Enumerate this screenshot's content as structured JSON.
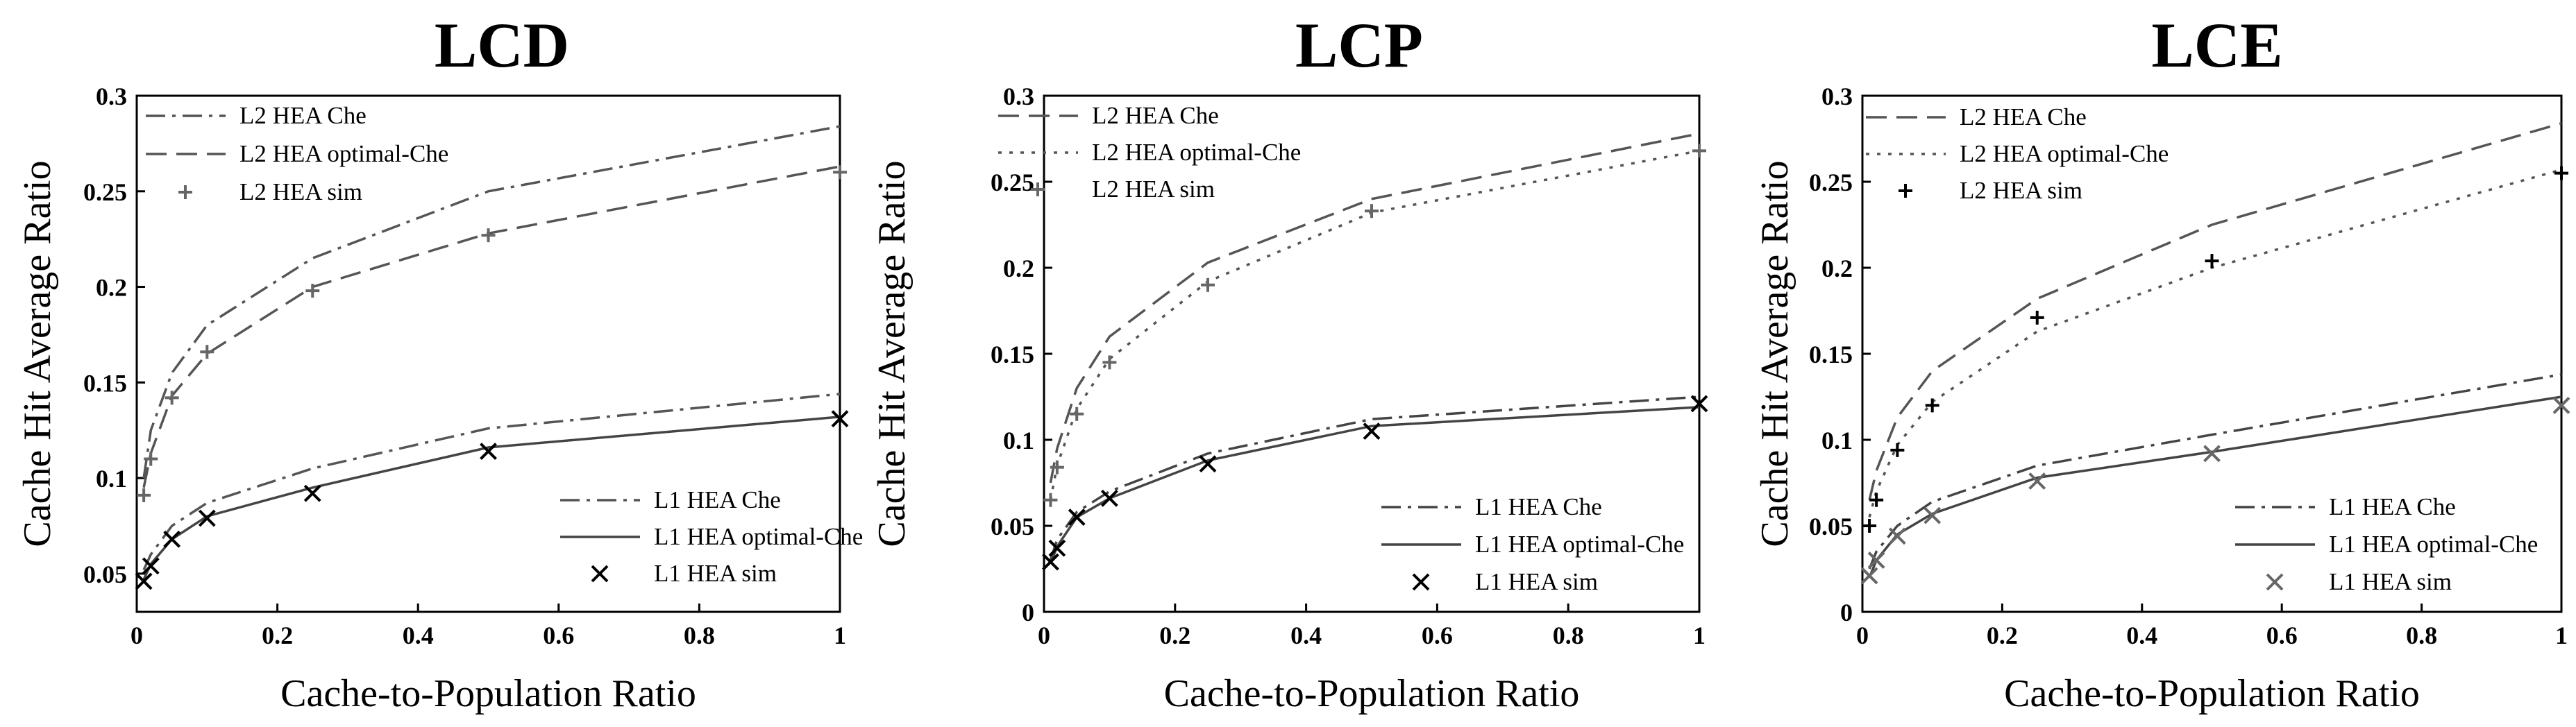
{
  "chart_data": [
    {
      "type": "line",
      "title": "LCD",
      "xlabel": "Cache-to-Population Ratio",
      "ylabel": "Cache Hit Average Ratio",
      "xlim": [
        0,
        1
      ],
      "ylim": [
        0.03,
        0.3
      ],
      "xticks": [
        0,
        0.2,
        0.4,
        0.6,
        0.8,
        1
      ],
      "xtick_labels": [
        "0",
        "0.2",
        "0.4",
        "0.6",
        "0.8",
        "1"
      ],
      "yticks": [
        0.05,
        0.1,
        0.15,
        0.2,
        0.25,
        0.3
      ],
      "ytick_labels": [
        "0.05",
        "0.1",
        "0.15",
        "0.2",
        "0.25",
        "0.3"
      ],
      "series": [
        {
          "name": "L2 HEA Che",
          "kind": "line",
          "dash": "dashdot",
          "color": "#555555",
          "group": "top",
          "x": [
            0.01,
            0.02,
            0.05,
            0.1,
            0.25,
            0.5,
            1
          ],
          "y": [
            0.1,
            0.125,
            0.155,
            0.18,
            0.215,
            0.25,
            0.284
          ]
        },
        {
          "name": "L2 HEA optimal-Che",
          "kind": "line",
          "dash": "dash",
          "color": "#555555",
          "group": "top",
          "x": [
            0.01,
            0.02,
            0.05,
            0.1,
            0.25,
            0.5,
            1
          ],
          "y": [
            0.095,
            0.113,
            0.143,
            0.165,
            0.2,
            0.228,
            0.263
          ]
        },
        {
          "name": "L2 HEA sim",
          "kind": "marker",
          "marker": "+",
          "color": "#666666",
          "group": "top",
          "x": [
            0.01,
            0.02,
            0.05,
            0.1,
            0.25,
            0.5,
            1
          ],
          "y": [
            0.091,
            0.11,
            0.142,
            0.166,
            0.198,
            0.227,
            0.26
          ]
        },
        {
          "name": "L1 HEA Che",
          "kind": "line",
          "dash": "dashdot",
          "color": "#555555",
          "group": "bottom",
          "x": [
            0.01,
            0.02,
            0.05,
            0.1,
            0.25,
            0.5,
            1
          ],
          "y": [
            0.052,
            0.06,
            0.075,
            0.087,
            0.105,
            0.126,
            0.144
          ]
        },
        {
          "name": "L1 HEA optimal-Che",
          "kind": "line",
          "dash": "solid",
          "color": "#444444",
          "group": "bottom",
          "x": [
            0.01,
            0.02,
            0.05,
            0.1,
            0.25,
            0.5,
            1
          ],
          "y": [
            0.047,
            0.055,
            0.068,
            0.08,
            0.095,
            0.116,
            0.132
          ]
        },
        {
          "name": "L1 HEA sim",
          "kind": "marker",
          "marker": "x",
          "color": "#000000",
          "group": "bottom",
          "x": [
            0.01,
            0.02,
            0.05,
            0.1,
            0.25,
            0.5,
            1
          ],
          "y": [
            0.046,
            0.054,
            0.068,
            0.079,
            0.092,
            0.114,
            0.131
          ]
        }
      ]
    },
    {
      "type": "line",
      "title": "LCP",
      "xlabel": "Cache-to-Population Ratio",
      "ylabel": "Cache Hit Average Ratio",
      "xlim": [
        0,
        1
      ],
      "ylim": [
        0,
        0.3
      ],
      "xticks": [
        0,
        0.2,
        0.4,
        0.6,
        0.8,
        1
      ],
      "xtick_labels": [
        "0",
        "0.2",
        "0.4",
        "0.6",
        "0.8",
        "1"
      ],
      "yticks": [
        0,
        0.05,
        0.1,
        0.15,
        0.2,
        0.25,
        0.3
      ],
      "ytick_labels": [
        "0",
        "0.05",
        "0.1",
        "0.15",
        "0.2",
        "0.25",
        "0.3"
      ],
      "series": [
        {
          "name": "L2 HEA Che",
          "kind": "line",
          "dash": "dash",
          "color": "#555555",
          "group": "top",
          "x": [
            0.01,
            0.02,
            0.05,
            0.1,
            0.25,
            0.5,
            1
          ],
          "y": [
            0.075,
            0.095,
            0.13,
            0.16,
            0.203,
            0.24,
            0.278
          ]
        },
        {
          "name": "L2 HEA optimal-Che",
          "kind": "line",
          "dash": "dot",
          "color": "#555555",
          "group": "top",
          "x": [
            0.01,
            0.02,
            0.05,
            0.1,
            0.25,
            0.5,
            1
          ],
          "y": [
            0.065,
            0.085,
            0.118,
            0.147,
            0.192,
            0.232,
            0.268
          ]
        },
        {
          "name": "L2 HEA sim",
          "kind": "marker",
          "marker": "+",
          "color": "#666666",
          "group": "top",
          "x": [
            0.01,
            0.02,
            0.05,
            0.1,
            0.25,
            0.5,
            1
          ],
          "y": [
            0.065,
            0.084,
            0.115,
            0.145,
            0.19,
            0.233,
            0.268
          ]
        },
        {
          "name": "L1 HEA Che",
          "kind": "line",
          "dash": "dashdot",
          "color": "#444444",
          "group": "bottom",
          "x": [
            0.01,
            0.02,
            0.05,
            0.1,
            0.25,
            0.5,
            1
          ],
          "y": [
            0.03,
            0.042,
            0.058,
            0.07,
            0.092,
            0.112,
            0.125
          ]
        },
        {
          "name": "L1 HEA optimal-Che",
          "kind": "line",
          "dash": "solid",
          "color": "#444444",
          "group": "bottom",
          "x": [
            0.01,
            0.02,
            0.05,
            0.1,
            0.25,
            0.5,
            1
          ],
          "y": [
            0.028,
            0.038,
            0.055,
            0.066,
            0.088,
            0.108,
            0.119
          ]
        },
        {
          "name": "L1 HEA sim",
          "kind": "marker",
          "marker": "x",
          "color": "#000000",
          "group": "bottom",
          "x": [
            0.01,
            0.02,
            0.05,
            0.1,
            0.25,
            0.5,
            1
          ],
          "y": [
            0.029,
            0.037,
            0.055,
            0.066,
            0.086,
            0.105,
            0.121
          ]
        }
      ]
    },
    {
      "type": "line",
      "title": "LCE",
      "xlabel": "Cache-to-Population Ratio",
      "ylabel": "Cache Hit Average Ratio",
      "xlim": [
        0,
        1
      ],
      "ylim": [
        0,
        0.3
      ],
      "xticks": [
        0,
        0.2,
        0.4,
        0.6,
        0.8,
        1
      ],
      "xtick_labels": [
        "0",
        "0.2",
        "0.4",
        "0.6",
        "0.8",
        "1"
      ],
      "yticks": [
        0,
        0.05,
        0.1,
        0.15,
        0.2,
        0.25,
        0.3
      ],
      "ytick_labels": [
        "0",
        "0.05",
        "0.1",
        "0.15",
        "0.2",
        "0.25",
        "0.3"
      ],
      "series": [
        {
          "name": "L2 HEA Che",
          "kind": "line",
          "dash": "dash",
          "color": "#555555",
          "group": "top",
          "x": [
            0.01,
            0.02,
            0.05,
            0.1,
            0.25,
            0.5,
            1
          ],
          "y": [
            0.065,
            0.082,
            0.113,
            0.14,
            0.182,
            0.225,
            0.284
          ]
        },
        {
          "name": "L2 HEA optimal-Che",
          "kind": "line",
          "dash": "dot",
          "color": "#555555",
          "group": "top",
          "x": [
            0.01,
            0.02,
            0.05,
            0.1,
            0.25,
            0.5,
            1
          ],
          "y": [
            0.055,
            0.07,
            0.097,
            0.122,
            0.163,
            0.2,
            0.257
          ]
        },
        {
          "name": "L2 HEA sim",
          "kind": "marker",
          "marker": "+",
          "color": "#000000",
          "group": "top",
          "x": [
            0.01,
            0.02,
            0.05,
            0.1,
            0.25,
            0.5,
            1
          ],
          "y": [
            0.05,
            0.065,
            0.094,
            0.12,
            0.171,
            0.204,
            0.255
          ]
        },
        {
          "name": "L1 HEA Che",
          "kind": "line",
          "dash": "dashdot",
          "color": "#444444",
          "group": "bottom",
          "x": [
            0.01,
            0.02,
            0.05,
            0.1,
            0.25,
            0.5,
            1
          ],
          "y": [
            0.025,
            0.035,
            0.05,
            0.064,
            0.085,
            0.103,
            0.138
          ]
        },
        {
          "name": "L1 HEA optimal-Che",
          "kind": "line",
          "dash": "solid",
          "color": "#444444",
          "group": "bottom",
          "x": [
            0.01,
            0.02,
            0.05,
            0.1,
            0.25,
            0.5,
            1
          ],
          "y": [
            0.02,
            0.03,
            0.045,
            0.057,
            0.078,
            0.093,
            0.125
          ]
        },
        {
          "name": "L1 HEA sim",
          "kind": "marker",
          "marker": "x",
          "color": "#666666",
          "group": "bottom",
          "x": [
            0.01,
            0.02,
            0.05,
            0.1,
            0.25,
            0.5,
            1
          ],
          "y": [
            0.021,
            0.03,
            0.044,
            0.056,
            0.076,
            0.092,
            0.12
          ]
        }
      ]
    }
  ]
}
